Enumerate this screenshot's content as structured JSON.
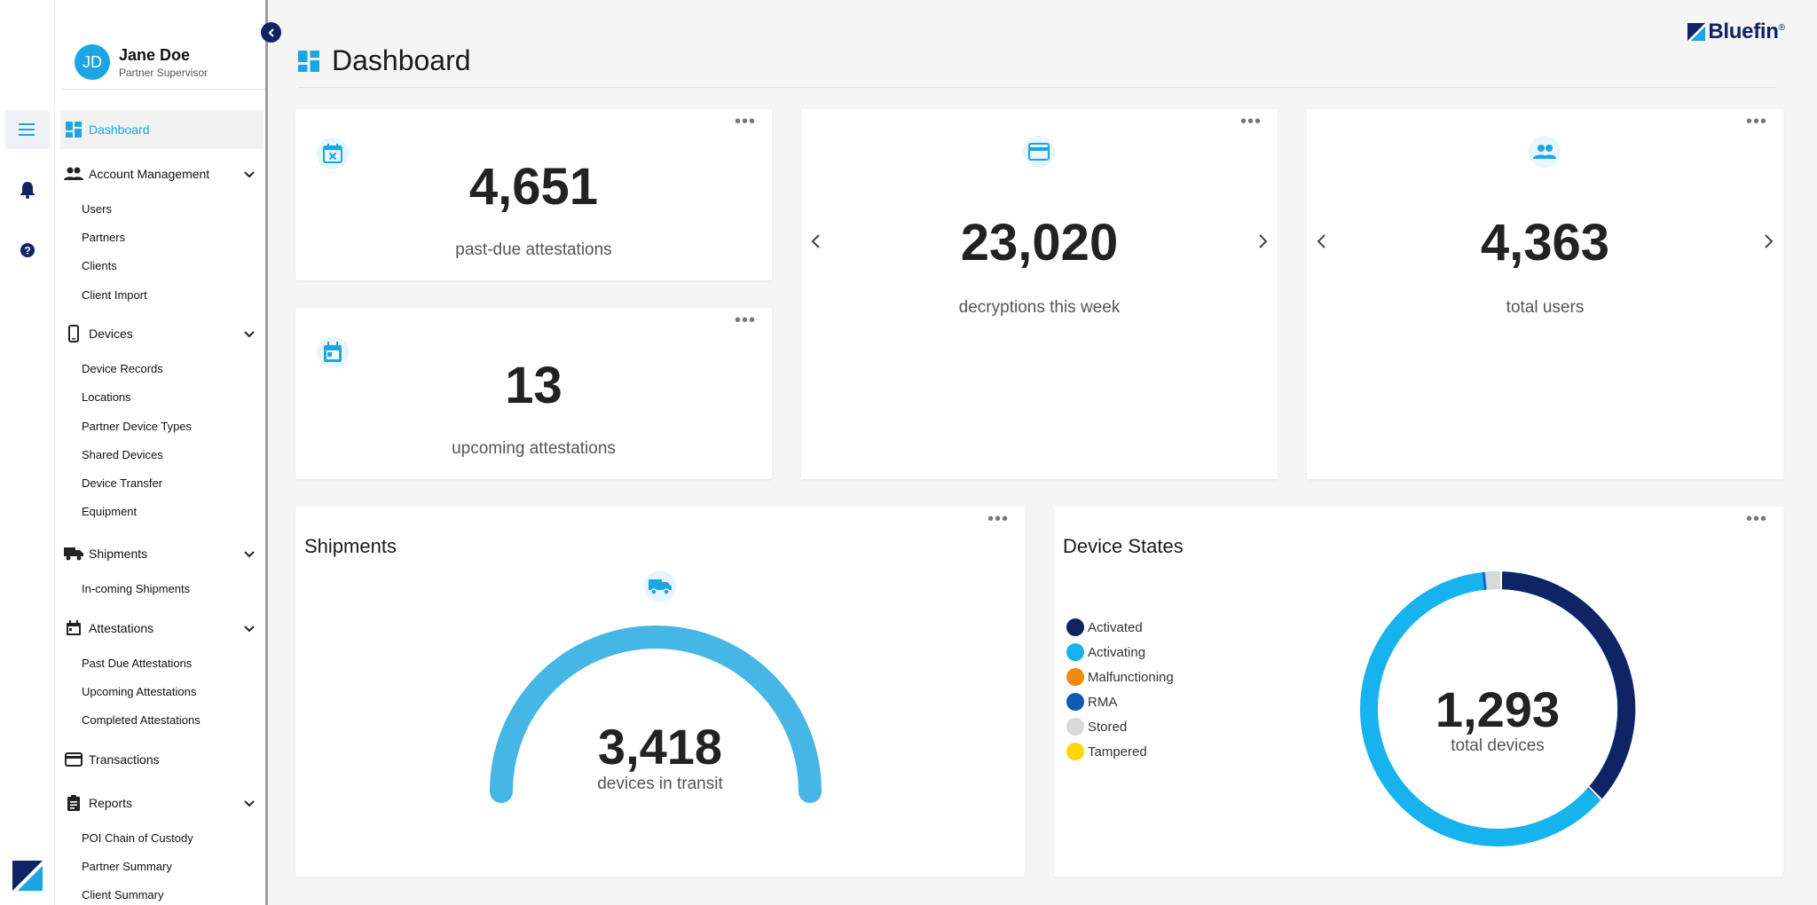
{
  "user": {
    "initials": "JD",
    "name": "Jane Doe",
    "role": "Partner Supervisor"
  },
  "sidebar": {
    "items": [
      {
        "label": "Dashboard",
        "icon": "dashboard-icon"
      },
      {
        "label": "Account Management",
        "icon": "people-icon",
        "children": [
          "Users",
          "Partners",
          "Clients",
          "Client Import"
        ]
      },
      {
        "label": "Devices",
        "icon": "phone-icon",
        "children": [
          "Device Records",
          "Locations",
          "Partner Device Types",
          "Shared Devices",
          "Device Transfer",
          "Equipment"
        ]
      },
      {
        "label": "Shipments",
        "icon": "truck-icon",
        "children": [
          "In-coming Shipments"
        ]
      },
      {
        "label": "Attestations",
        "icon": "calendar-icon",
        "children": [
          "Past Due Attestations",
          "Upcoming Attestations",
          "Completed Attestations"
        ]
      },
      {
        "label": "Transactions",
        "icon": "card-icon"
      },
      {
        "label": "Reports",
        "icon": "clipboard-icon",
        "children": [
          "POI Chain of Custody",
          "Partner Summary",
          "Client Summary"
        ]
      }
    ]
  },
  "brand": {
    "name": "Bluefin",
    "reg": "®"
  },
  "page": {
    "title": "Dashboard"
  },
  "cards": {
    "past_due": {
      "value": "4,651",
      "label": "past-due attestations"
    },
    "upcoming": {
      "value": "13",
      "label": "upcoming attestations"
    },
    "decryptions": {
      "value": "23,020",
      "label": "decryptions this week"
    },
    "users": {
      "value": "4,363",
      "label": "total users"
    }
  },
  "shipments": {
    "title": "Shipments",
    "value": "3,418",
    "label": "devices in transit",
    "fill_fraction": 1.0
  },
  "device_states": {
    "title": "Device States",
    "total": "1,293",
    "total_label": "total devices",
    "legend": [
      {
        "name": "Activated",
        "color": "#0e2464"
      },
      {
        "name": "Activating",
        "color": "#16b3ee"
      },
      {
        "name": "Malfunctioning",
        "color": "#f08a0c"
      },
      {
        "name": "RMA",
        "color": "#0d5bb5"
      },
      {
        "name": "Stored",
        "color": "#d8d8d8"
      },
      {
        "name": "Tampered",
        "color": "#ffd600"
      }
    ]
  },
  "colors": {
    "accent": "#1ba6e3",
    "navy": "#0e2464",
    "gauge": "#45b6e6"
  }
}
